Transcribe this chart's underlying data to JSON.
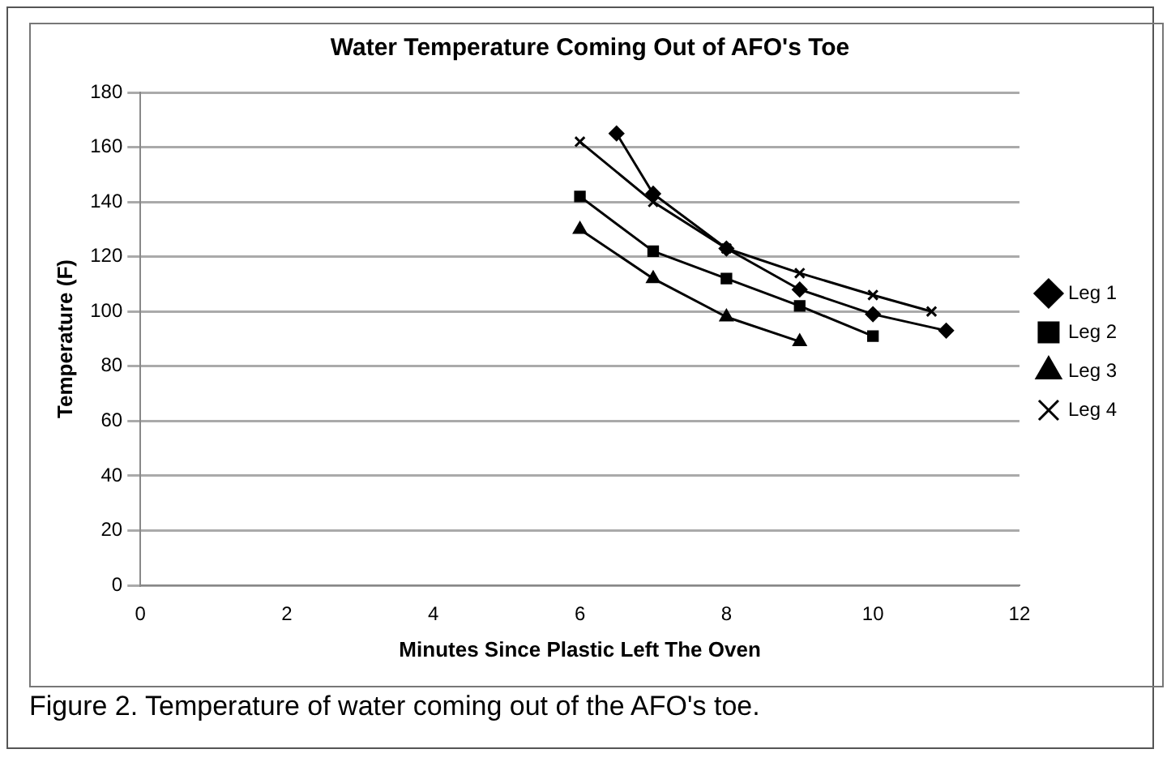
{
  "chart_data": {
    "type": "line",
    "title": "Water Temperature Coming Out of AFO's Toe",
    "xlabel": "Minutes Since Plastic Left The Oven",
    "ylabel": "Temperature (F)",
    "xlim": [
      0,
      12
    ],
    "xticks": [
      0,
      2,
      4,
      6,
      8,
      10,
      12
    ],
    "ylim": [
      0,
      180
    ],
    "yticks": [
      0,
      20,
      40,
      60,
      80,
      100,
      120,
      140,
      160,
      180
    ],
    "grid": "y",
    "legend": "right",
    "line_style": "solid",
    "series": [
      {
        "name": "Leg 1",
        "color": "#000000",
        "marker": "diamond",
        "x": [
          6.5,
          7,
          8,
          9,
          10,
          11
        ],
        "values": [
          165,
          143,
          123,
          108,
          99,
          93
        ]
      },
      {
        "name": "Leg 2",
        "color": "#000000",
        "marker": "square",
        "x": [
          6,
          7,
          8,
          9,
          10
        ],
        "values": [
          142,
          122,
          112,
          102,
          91
        ]
      },
      {
        "name": "Leg 3",
        "color": "#000000",
        "marker": "triangle",
        "x": [
          6,
          7,
          8,
          9
        ],
        "values": [
          130,
          112,
          98,
          89
        ]
      },
      {
        "name": "Leg 4",
        "color": "#000000",
        "marker": "cross",
        "x": [
          6,
          7,
          8,
          9,
          10,
          10.8
        ],
        "values": [
          162,
          140,
          123,
          114,
          106,
          100
        ]
      }
    ],
    "annotations": [
      "Figure 2. Temperature of water coming out of the AFO's toe."
    ]
  }
}
